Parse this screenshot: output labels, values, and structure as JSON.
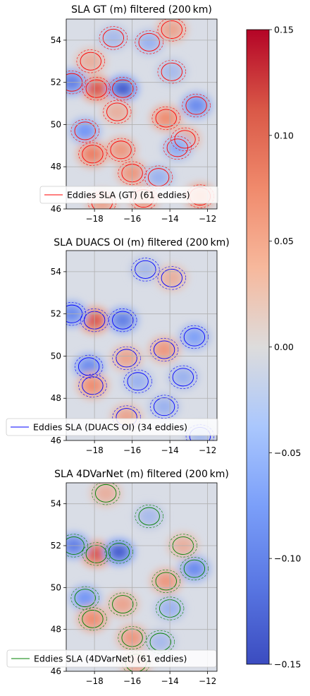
{
  "colorbar": {
    "ticks": [
      "0.15",
      "0.10",
      "0.05",
      "0.00",
      "−0.05",
      "−0.10",
      "−0.15"
    ],
    "values": [
      0.15,
      0.1,
      0.05,
      0.0,
      -0.05,
      -0.1,
      -0.15
    ],
    "vmin": -0.15,
    "vmax": 0.15,
    "colormap": "coolwarm",
    "colors": {
      "low": "#3b4cc0",
      "mid": "#dddddd",
      "high": "#b40426"
    }
  },
  "chart_data": [
    {
      "type": "heatmap",
      "title": "SLA GT (m) filtered (200 km)",
      "xlabel": "",
      "ylabel": "",
      "xlim": [
        -19.5,
        -11.5
      ],
      "ylim": [
        46,
        55
      ],
      "xticks": [
        "−18",
        "−16",
        "−14",
        "−12"
      ],
      "yticks": [
        "54",
        "52",
        "50",
        "48",
        "46"
      ],
      "grid": true,
      "legend": {
        "label": "Eddies SLA (GT) (61 eddies)",
        "color": "#ff0000",
        "placement": "lower-left"
      }
    },
    {
      "type": "heatmap",
      "title": "SLA DUACS OI (m) filtered (200 km)",
      "xlabel": "",
      "ylabel": "",
      "xlim": [
        -19.5,
        -11.5
      ],
      "ylim": [
        46,
        55
      ],
      "xticks": [
        "−18",
        "−16",
        "−14",
        "−12"
      ],
      "yticks": [
        "54",
        "52",
        "50",
        "48",
        "46"
      ],
      "grid": true,
      "legend": {
        "label": "Eddies SLA (DUACS OI) (34 eddies)",
        "color": "#0000ff",
        "placement": "lower-left"
      }
    },
    {
      "type": "heatmap",
      "title": "SLA 4DVarNet (m) filtered (200 km)",
      "xlabel": "",
      "ylabel": "",
      "xlim": [
        -19.5,
        -11.5
      ],
      "ylim": [
        46,
        55
      ],
      "xticks": [
        "−18",
        "−16",
        "−14",
        "−12"
      ],
      "yticks": [
        "54",
        "52",
        "50",
        "48",
        "46"
      ],
      "grid": true,
      "legend": {
        "label": "Eddies SLA (4DVarNet) (61 eddies)",
        "color": "#008000",
        "placement": "lower-left"
      }
    }
  ],
  "eddies": [
    [
      {
        "lon": -17.9,
        "lat": 51.7,
        "a": 0.1
      },
      {
        "lon": -16.5,
        "lat": 51.7,
        "a": -0.13
      },
      {
        "lon": -18.5,
        "lat": 49.7,
        "a": -0.08
      },
      {
        "lon": -18.1,
        "lat": 48.6,
        "a": 0.08
      },
      {
        "lon": -16.6,
        "lat": 48.8,
        "a": 0.06
      },
      {
        "lon": -12.6,
        "lat": 50.9,
        "a": -0.09
      },
      {
        "lon": -14.2,
        "lat": 50.3,
        "a": 0.07
      },
      {
        "lon": -13.2,
        "lat": 49.3,
        "a": 0.05
      },
      {
        "lon": -13.6,
        "lat": 48.9,
        "a": -0.06
      },
      {
        "lon": -15.1,
        "lat": 53.9,
        "a": -0.05
      },
      {
        "lon": -13.9,
        "lat": 54.5,
        "a": 0.05
      },
      {
        "lon": -18.2,
        "lat": 53.0,
        "a": 0.04
      },
      {
        "lon": -16.0,
        "lat": 47.7,
        "a": 0.06
      },
      {
        "lon": -14.6,
        "lat": 47.5,
        "a": -0.05
      },
      {
        "lon": -19.2,
        "lat": 52.0,
        "a": -0.1
      },
      {
        "lon": -16.8,
        "lat": 50.6,
        "a": 0.04
      },
      {
        "lon": -13.9,
        "lat": 52.5,
        "a": -0.04
      },
      {
        "lon": -15.4,
        "lat": 46.5,
        "a": 0.06
      },
      {
        "lon": -12.4,
        "lat": 46.6,
        "a": 0.07
      },
      {
        "lon": -17.6,
        "lat": 46.3,
        "a": 0.05
      },
      {
        "lon": -17.0,
        "lat": 54.1,
        "a": -0.04
      }
    ],
    [
      {
        "lon": -18.0,
        "lat": 51.7,
        "a": 0.1
      },
      {
        "lon": -16.5,
        "lat": 51.7,
        "a": -0.1
      },
      {
        "lon": -18.3,
        "lat": 49.5,
        "a": -0.09
      },
      {
        "lon": -18.1,
        "lat": 48.6,
        "a": 0.07
      },
      {
        "lon": -16.3,
        "lat": 49.9,
        "a": 0.05
      },
      {
        "lon": -15.7,
        "lat": 48.8,
        "a": -0.05
      },
      {
        "lon": -12.7,
        "lat": 50.9,
        "a": -0.07
      },
      {
        "lon": -14.3,
        "lat": 50.3,
        "a": 0.06
      },
      {
        "lon": -13.3,
        "lat": 49.0,
        "a": -0.05
      },
      {
        "lon": -15.3,
        "lat": 54.1,
        "a": -0.04
      },
      {
        "lon": -13.9,
        "lat": 53.7,
        "a": 0.04
      },
      {
        "lon": -14.3,
        "lat": 47.6,
        "a": -0.05
      },
      {
        "lon": -19.2,
        "lat": 52.0,
        "a": -0.09
      },
      {
        "lon": -16.3,
        "lat": 47.1,
        "a": 0.05
      },
      {
        "lon": -12.4,
        "lat": 46.2,
        "a": -0.04
      }
    ],
    [
      {
        "lon": -17.9,
        "lat": 51.6,
        "a": 0.1
      },
      {
        "lon": -16.7,
        "lat": 51.7,
        "a": -0.13
      },
      {
        "lon": -18.5,
        "lat": 49.5,
        "a": -0.08
      },
      {
        "lon": -18.1,
        "lat": 48.5,
        "a": 0.07
      },
      {
        "lon": -16.5,
        "lat": 49.2,
        "a": 0.05
      },
      {
        "lon": -12.7,
        "lat": 50.9,
        "a": -0.09
      },
      {
        "lon": -14.2,
        "lat": 50.3,
        "a": 0.06
      },
      {
        "lon": -14.0,
        "lat": 49.0,
        "a": -0.05
      },
      {
        "lon": -16.0,
        "lat": 47.6,
        "a": 0.06
      },
      {
        "lon": -14.5,
        "lat": 47.4,
        "a": -0.04
      },
      {
        "lon": -15.1,
        "lat": 53.4,
        "a": -0.04
      },
      {
        "lon": -19.1,
        "lat": 52.0,
        "a": -0.1
      },
      {
        "lon": -13.3,
        "lat": 52.0,
        "a": 0.04
      },
      {
        "lon": -15.8,
        "lat": 46.4,
        "a": 0.05
      },
      {
        "lon": -17.4,
        "lat": 54.5,
        "a": 0.04
      }
    ]
  ]
}
